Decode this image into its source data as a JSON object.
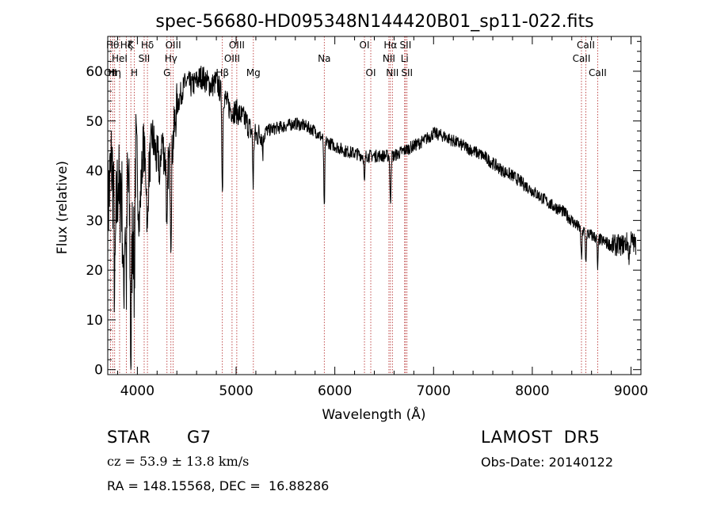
{
  "chart_data": {
    "type": "line",
    "title": "spec-56680-HD095348N144420B01_sp11-022.fits",
    "xlabel": "Wavelength (Å)",
    "ylabel": "Flux (relative)",
    "xlim": [
      3700,
      9100
    ],
    "ylim": [
      -1,
      67
    ],
    "xticks": [
      4000,
      5000,
      6000,
      7000,
      8000,
      9000
    ],
    "yticks": [
      0,
      10,
      20,
      30,
      40,
      50,
      60
    ],
    "grid": false,
    "line_color": "#000000",
    "marker_color": "#b22222",
    "anchors": [
      [
        3700,
        32
      ],
      [
        3740,
        42
      ],
      [
        3780,
        28
      ],
      [
        3820,
        45
      ],
      [
        3860,
        25
      ],
      [
        3900,
        40
      ],
      [
        3940,
        22
      ],
      [
        3980,
        44
      ],
      [
        4020,
        30
      ],
      [
        4060,
        46
      ],
      [
        4100,
        36
      ],
      [
        4150,
        47
      ],
      [
        4200,
        42
      ],
      [
        4250,
        46
      ],
      [
        4300,
        40
      ],
      [
        4350,
        44
      ],
      [
        4400,
        53
      ],
      [
        4450,
        56
      ],
      [
        4500,
        58
      ],
      [
        4550,
        57
      ],
      [
        4600,
        58
      ],
      [
        4650,
        59
      ],
      [
        4700,
        58
      ],
      [
        4750,
        57
      ],
      [
        4800,
        58
      ],
      [
        4840,
        56
      ],
      [
        4880,
        55
      ],
      [
        4920,
        53
      ],
      [
        4960,
        52
      ],
      [
        5000,
        52
      ],
      [
        5050,
        51
      ],
      [
        5100,
        50
      ],
      [
        5150,
        48
      ],
      [
        5200,
        47
      ],
      [
        5300,
        48
      ],
      [
        5400,
        48.5
      ],
      [
        5500,
        49
      ],
      [
        5600,
        49.5
      ],
      [
        5700,
        49
      ],
      [
        5800,
        48
      ],
      [
        5900,
        46
      ],
      [
        6000,
        45
      ],
      [
        6100,
        44
      ],
      [
        6200,
        43.5
      ],
      [
        6300,
        43
      ],
      [
        6400,
        43
      ],
      [
        6500,
        43
      ],
      [
        6600,
        43
      ],
      [
        6700,
        44
      ],
      [
        6800,
        45
      ],
      [
        6900,
        46
      ],
      [
        7000,
        47.5
      ],
      [
        7100,
        47
      ],
      [
        7200,
        46
      ],
      [
        7300,
        45
      ],
      [
        7400,
        44
      ],
      [
        7500,
        43
      ],
      [
        7600,
        41.5
      ],
      [
        7700,
        40
      ],
      [
        7800,
        39
      ],
      [
        7900,
        37.5
      ],
      [
        8000,
        36
      ],
      [
        8100,
        34.5
      ],
      [
        8200,
        33
      ],
      [
        8300,
        32
      ],
      [
        8400,
        30
      ],
      [
        8500,
        28
      ],
      [
        8600,
        27
      ],
      [
        8700,
        26
      ],
      [
        8800,
        25
      ],
      [
        8900,
        25
      ],
      [
        9000,
        26
      ],
      [
        9050,
        25
      ]
    ],
    "absorption_features": [
      {
        "x": 3770,
        "depth": 18
      },
      {
        "x": 3820,
        "depth": 14
      },
      {
        "x": 3860,
        "depth": 12
      },
      {
        "x": 3889,
        "depth": 18
      },
      {
        "x": 3934,
        "depth": 24
      },
      {
        "x": 3969,
        "depth": 22
      },
      {
        "x": 4102,
        "depth": 10
      },
      {
        "x": 4227,
        "depth": 8
      },
      {
        "x": 4300,
        "depth": 14
      },
      {
        "x": 4340,
        "depth": 16
      },
      {
        "x": 4861,
        "depth": 20
      },
      {
        "x": 5173,
        "depth": 10
      },
      {
        "x": 5270,
        "depth": 4
      },
      {
        "x": 5893,
        "depth": 14
      },
      {
        "x": 6300,
        "depth": 6
      },
      {
        "x": 6563,
        "depth": 10
      },
      {
        "x": 8498,
        "depth": 6
      },
      {
        "x": 8542,
        "depth": 6
      },
      {
        "x": 8662,
        "depth": 6
      },
      {
        "x": 8980,
        "depth": 4
      }
    ],
    "line_markers": [
      {
        "x": 3727,
        "label": "OII",
        "row": 2
      },
      {
        "x": 3750,
        "label": "Hθ",
        "row": 0
      },
      {
        "x": 3770,
        "label": "Hη",
        "row": 2
      },
      {
        "x": 3820,
        "label": "HeI",
        "row": 1
      },
      {
        "x": 3889,
        "label": "Hζ",
        "row": 0
      },
      {
        "x": 3934,
        "label": "K",
        "row": 0
      },
      {
        "x": 3969,
        "label": "H",
        "row": 2
      },
      {
        "x": 4069,
        "label": "SII",
        "row": 1
      },
      {
        "x": 4102,
        "label": "Hδ",
        "row": 0
      },
      {
        "x": 4300,
        "label": "G",
        "row": 2
      },
      {
        "x": 4340,
        "label": "Hγ",
        "row": 1
      },
      {
        "x": 4363,
        "label": "OIII",
        "row": 0
      },
      {
        "x": 4861,
        "label": "Hβ",
        "row": 2
      },
      {
        "x": 4959,
        "label": "OIII",
        "row": 1
      },
      {
        "x": 5007,
        "label": "OIII",
        "row": 0
      },
      {
        "x": 5175,
        "label": "Mg",
        "row": 2
      },
      {
        "x": 5893,
        "label": "Na",
        "row": 1
      },
      {
        "x": 6300,
        "label": "OI",
        "row": 0
      },
      {
        "x": 6364,
        "label": "OI",
        "row": 2
      },
      {
        "x": 6548,
        "label": "NII",
        "row": 1
      },
      {
        "x": 6563,
        "label": "Hα",
        "row": 0
      },
      {
        "x": 6583,
        "label": "NII",
        "row": 2
      },
      {
        "x": 6707,
        "label": "Li",
        "row": 1
      },
      {
        "x": 6716,
        "label": "SII",
        "row": 0
      },
      {
        "x": 6731,
        "label": "SII",
        "row": 2
      },
      {
        "x": 8498,
        "label": "CaII",
        "row": 1
      },
      {
        "x": 8542,
        "label": "CaII",
        "row": 0
      },
      {
        "x": 8662,
        "label": "CaII",
        "row": 2
      }
    ]
  },
  "info": {
    "class_label": "STAR",
    "subclass": "G7",
    "survey": "LAMOST  DR5",
    "cz": "cz = 53.9 ± 13.8 km/s",
    "obs_date": "Obs-Date: 20140122",
    "coords": "RA = 148.15568, DEC =  16.88286"
  }
}
